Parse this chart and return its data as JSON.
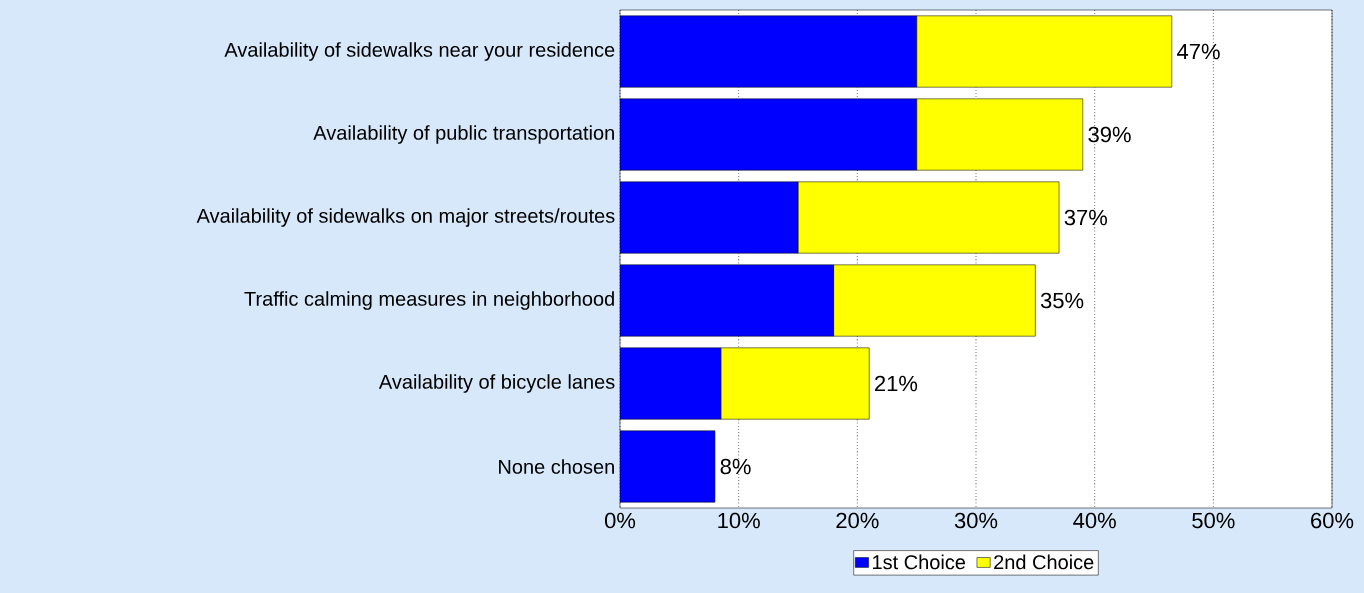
{
  "chart_data": {
    "type": "bar",
    "orientation": "horizontal",
    "stacked": true,
    "categories": [
      "Availability of sidewalks near your residence",
      "Availability of public transportation",
      "Availability of sidewalks on major streets/routes",
      "Traffic calming measures in neighborhood",
      "Availability of bicycle lanes",
      "None chosen"
    ],
    "series": [
      {
        "name": "1st Choice",
        "color": "#0000ff",
        "values": [
          25,
          25,
          15,
          18,
          8.5,
          8
        ]
      },
      {
        "name": "2nd Choice",
        "color": "#ffff00",
        "values": [
          21.5,
          14,
          22,
          17,
          12.5,
          null
        ]
      }
    ],
    "totals": [
      "47%",
      "39%",
      "37%",
      "35%",
      "21%",
      "8%"
    ],
    "xlim": [
      0,
      60
    ],
    "xticks": [
      {
        "value": 0,
        "label": "0%"
      },
      {
        "value": 10,
        "label": "10%"
      },
      {
        "value": 20,
        "label": "20%"
      },
      {
        "value": 30,
        "label": "30%"
      },
      {
        "value": 40,
        "label": "40%"
      },
      {
        "value": 50,
        "label": "50%"
      },
      {
        "value": 60,
        "label": "60%"
      }
    ],
    "grid": "x",
    "legend": "bottom"
  }
}
